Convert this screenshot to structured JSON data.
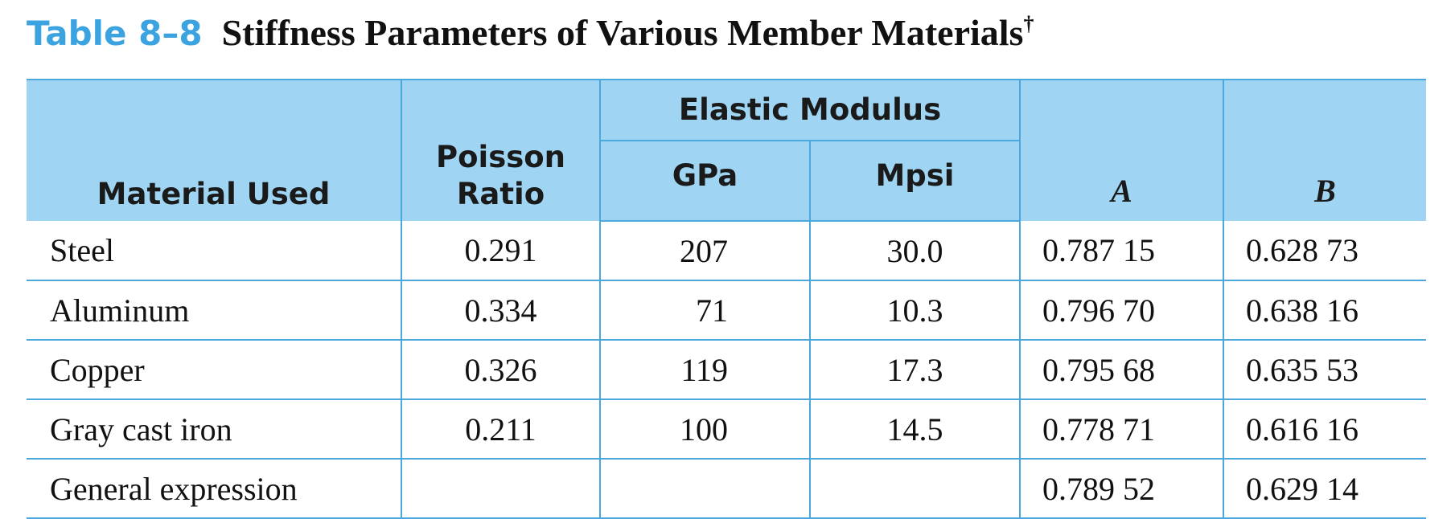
{
  "title": {
    "label": "Table 8–8",
    "text": "Stiffness Parameters of Various Member Materials",
    "dagger": "†"
  },
  "table": {
    "headers": {
      "material": "Material Used",
      "poisson": "Poisson Ratio",
      "elastic_modulus": "Elastic Modulus",
      "gpa": "GPa",
      "mpsi": "Mpsi",
      "a": "A",
      "b": "B"
    },
    "rows": [
      {
        "material": "Steel",
        "poisson": "0.291",
        "gpa": "207",
        "mpsi": "30.0",
        "a": "0.787 15",
        "b": "0.628 73"
      },
      {
        "material": "Aluminum",
        "poisson": "0.334",
        "gpa": "71",
        "mpsi": "10.3",
        "a": "0.796 70",
        "b": "0.638 16"
      },
      {
        "material": "Copper",
        "poisson": "0.326",
        "gpa": "119",
        "mpsi": "17.3",
        "a": "0.795 68",
        "b": "0.635 53"
      },
      {
        "material": "Gray cast iron",
        "poisson": "0.211",
        "gpa": "100",
        "mpsi": "14.5",
        "a": "0.778 71",
        "b": "0.616 16"
      },
      {
        "material": "General expression",
        "poisson": "",
        "gpa": "",
        "mpsi": "",
        "a": "0.789 52",
        "b": "0.629 14"
      }
    ]
  },
  "colors": {
    "accent": "#3ba3df",
    "header_fill": "#9fd5f3",
    "rule": "#4aa8dc"
  }
}
